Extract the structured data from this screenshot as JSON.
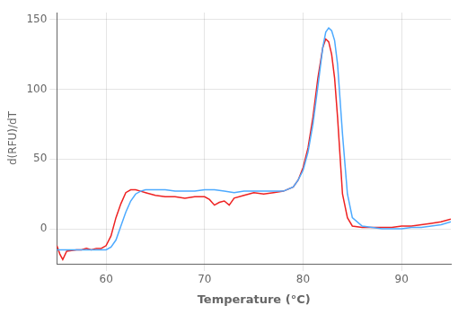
{
  "chart_data": {
    "type": "line",
    "xlabel": "Temperature (°C)",
    "ylabel": "d(RFU)/dT",
    "xlim": [
      55,
      95
    ],
    "ylim": [
      -25,
      155
    ],
    "xticks": [
      60,
      70,
      80,
      90
    ],
    "yticks": [
      0,
      50,
      100,
      150
    ],
    "grid": true,
    "series": [
      {
        "color": "#EE2222",
        "x": [
          55.0,
          55.3,
          55.6,
          56.0,
          57.0,
          57.5,
          58.0,
          58.5,
          59.0,
          59.5,
          60.0,
          60.5,
          61.0,
          61.5,
          62.0,
          62.5,
          63.0,
          63.5,
          64.0,
          65.0,
          66.0,
          67.0,
          68.0,
          69.0,
          70.0,
          70.5,
          71.0,
          71.5,
          72.0,
          72.5,
          73.0,
          74.0,
          75.0,
          76.0,
          77.0,
          78.0,
          79.0,
          79.5,
          80.0,
          80.5,
          81.0,
          81.5,
          82.0,
          82.3,
          82.6,
          82.9,
          83.2,
          83.5,
          84.0,
          84.5,
          85.0,
          86.0,
          87.0,
          88.0,
          89.0,
          90.0,
          91.0,
          92.0,
          93.0,
          94.0,
          95.0
        ],
        "values": [
          -12,
          -18,
          -22,
          -16,
          -15,
          -15,
          -14,
          -15,
          -14,
          -14,
          -12,
          -5,
          8,
          18,
          26,
          28,
          28,
          27,
          26,
          24,
          23,
          23,
          22,
          23,
          23,
          21,
          17,
          19,
          20,
          17,
          22,
          24,
          26,
          25,
          26,
          27,
          30,
          35,
          44,
          58,
          80,
          108,
          130,
          136,
          134,
          125,
          108,
          80,
          25,
          8,
          2,
          1,
          1,
          1,
          1,
          2,
          2,
          3,
          4,
          5,
          7
        ]
      },
      {
        "color": "#4DAAFF",
        "x": [
          55.0,
          55.5,
          56.0,
          57.0,
          58.0,
          58.5,
          59.0,
          59.5,
          60.0,
          60.5,
          61.0,
          61.5,
          62.0,
          62.5,
          63.0,
          63.5,
          64.0,
          65.0,
          66.0,
          67.0,
          68.0,
          69.0,
          70.0,
          71.0,
          72.0,
          73.0,
          74.0,
          75.0,
          76.0,
          77.0,
          78.0,
          79.0,
          79.5,
          80.0,
          80.5,
          81.0,
          81.5,
          82.0,
          82.3,
          82.6,
          82.9,
          83.2,
          83.5,
          84.0,
          84.5,
          85.0,
          86.0,
          87.0,
          88.0,
          89.0,
          90.0,
          91.0,
          92.0,
          93.0,
          94.0,
          95.0
        ],
        "values": [
          -15,
          -15,
          -15,
          -15,
          -15,
          -15,
          -15,
          -15,
          -15,
          -13,
          -8,
          2,
          12,
          20,
          25,
          27,
          28,
          28,
          28,
          27,
          27,
          27,
          28,
          28,
          27,
          26,
          27,
          27,
          27,
          27,
          27,
          30,
          35,
          42,
          55,
          75,
          102,
          130,
          141,
          144,
          142,
          135,
          118,
          68,
          25,
          8,
          2,
          1,
          0,
          0,
          0,
          1,
          1,
          2,
          3,
          5
        ]
      }
    ]
  }
}
